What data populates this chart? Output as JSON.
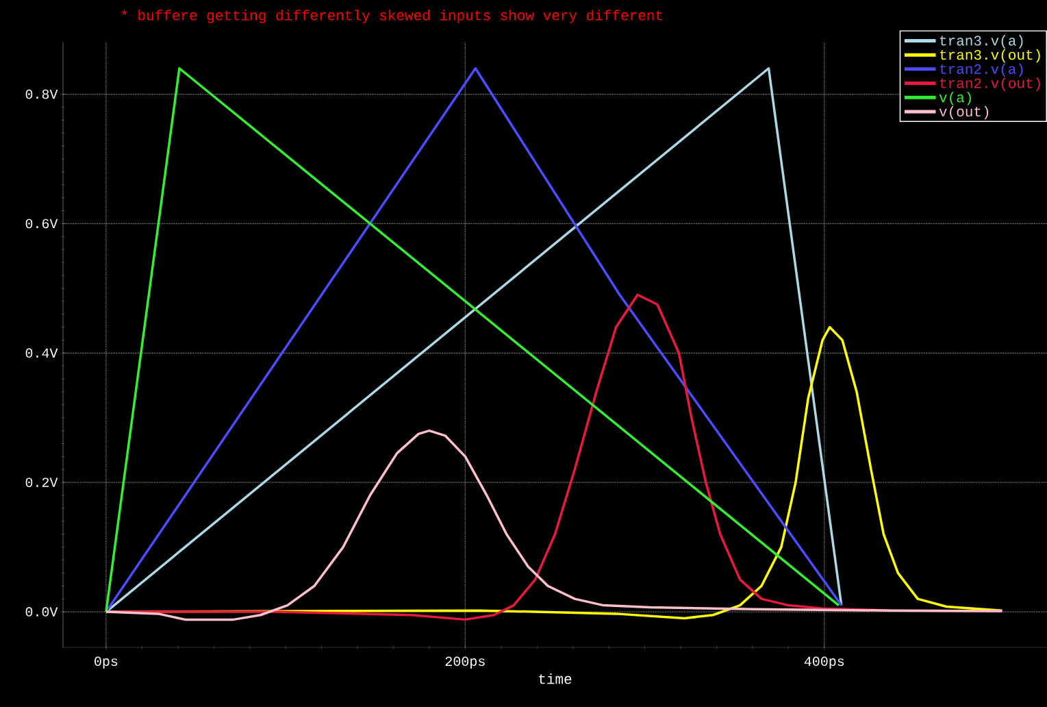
{
  "chart_data": {
    "type": "line",
    "subtitle": "* buffere getting differently skewed inputs show very different",
    "xlabel": "time",
    "xlim": [
      -24,
      524
    ],
    "ylim": [
      -0.055,
      0.88
    ],
    "xticks": [
      {
        "value": 0,
        "label": "0ps"
      },
      {
        "value": 200,
        "label": "200ps"
      },
      {
        "value": 400,
        "label": "400ps"
      }
    ],
    "yticks": [
      {
        "value": 0,
        "label": "0.0V"
      },
      {
        "value": 0.2,
        "label": "0.2V"
      },
      {
        "value": 0.4,
        "label": "0.4V"
      },
      {
        "value": 0.6,
        "label": "0.6V"
      },
      {
        "value": 0.8,
        "label": "0.8V"
      }
    ],
    "grid": true,
    "legend": "top right",
    "series": [
      {
        "name": "tran3.v(a)",
        "color": "#add8e6",
        "x": [
          0,
          369,
          409.5
        ],
        "values": [
          0,
          0.84,
          0.01
        ]
      },
      {
        "name": "tran3.v(out)",
        "color": "#ffff00",
        "x": [
          0,
          208,
          284,
          322,
          338,
          353,
          365,
          376,
          384,
          391,
          399,
          403,
          410,
          418,
          426,
          433,
          441,
          452,
          468,
          499
        ],
        "values": [
          0,
          0.002,
          -0.003,
          -0.01,
          -0.005,
          0.01,
          0.04,
          0.1,
          0.2,
          0.33,
          0.42,
          0.44,
          0.42,
          0.34,
          0.22,
          0.12,
          0.06,
          0.02,
          0.008,
          0.002
        ]
      },
      {
        "name": "tran2.v(a)",
        "color": "#4b4bff",
        "x": [
          0,
          205.7,
          286,
          409.5
        ],
        "values": [
          0,
          0.84,
          0.49,
          0.01
        ]
      },
      {
        "name": "tran2.v(out)",
        "color": "#e8193c",
        "x": [
          0,
          94,
          170,
          200,
          216,
          227,
          239,
          250,
          261,
          273,
          284,
          296,
          307,
          319,
          326,
          334,
          342,
          353,
          365,
          380,
          399,
          437,
          499
        ],
        "values": [
          0,
          0,
          -0.005,
          -0.012,
          -0.005,
          0.01,
          0.05,
          0.12,
          0.22,
          0.34,
          0.44,
          0.49,
          0.475,
          0.4,
          0.3,
          0.2,
          0.12,
          0.05,
          0.02,
          0.01,
          0.005,
          0.002,
          0.001
        ]
      },
      {
        "name": "v(a)",
        "color": "#33ee33",
        "x": [
          0,
          40.8,
          408
        ],
        "values": [
          0,
          0.84,
          0.01
        ]
      },
      {
        "name": "v(out)",
        "color": "#ffc0cb",
        "x": [
          0,
          29,
          44,
          71,
          86,
          101,
          116,
          132,
          147,
          162,
          174,
          180,
          189,
          200,
          212,
          223,
          235,
          246,
          261,
          277,
          303,
          361,
          437,
          499
        ],
        "values": [
          0,
          -0.003,
          -0.012,
          -0.012,
          -0.005,
          0.01,
          0.04,
          0.1,
          0.18,
          0.245,
          0.275,
          0.28,
          0.272,
          0.24,
          0.18,
          0.12,
          0.07,
          0.04,
          0.02,
          0.01,
          0.007,
          0.004,
          0.002,
          0.001
        ]
      }
    ]
  }
}
